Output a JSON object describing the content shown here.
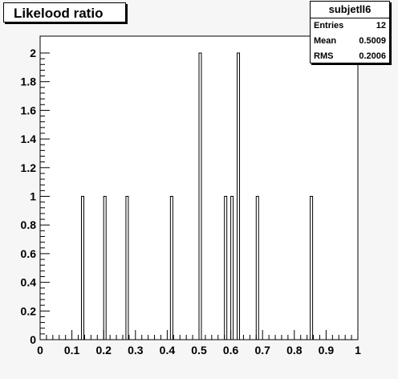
{
  "title": "Likelood ratio",
  "stats": {
    "name": "subjetll6",
    "rows": [
      {
        "key": "Entries",
        "value": "12"
      },
      {
        "key": "Mean",
        "value": "0.5009"
      },
      {
        "key": "RMS",
        "value": "0.2006"
      }
    ]
  },
  "chart_data": {
    "type": "bar",
    "xlim": [
      0,
      1
    ],
    "ylim": [
      0,
      2.1
    ],
    "bin_width": 0.01,
    "bins": [
      {
        "x": 0.13,
        "value": 1
      },
      {
        "x": 0.2,
        "value": 1
      },
      {
        "x": 0.27,
        "value": 1
      },
      {
        "x": 0.41,
        "value": 1
      },
      {
        "x": 0.5,
        "value": 2
      },
      {
        "x": 0.58,
        "value": 1
      },
      {
        "x": 0.6,
        "value": 1
      },
      {
        "x": 0.62,
        "value": 2
      },
      {
        "x": 0.68,
        "value": 1
      },
      {
        "x": 0.85,
        "value": 1
      }
    ],
    "xticks": [
      "0",
      "0.1",
      "0.2",
      "0.3",
      "0.4",
      "0.5",
      "0.6",
      "0.7",
      "0.8",
      "0.9",
      "1"
    ],
    "yticks": [
      "0",
      "0.2",
      "0.4",
      "0.6",
      "0.8",
      "1",
      "1.2",
      "1.4",
      "1.6",
      "1.8",
      "2"
    ]
  }
}
